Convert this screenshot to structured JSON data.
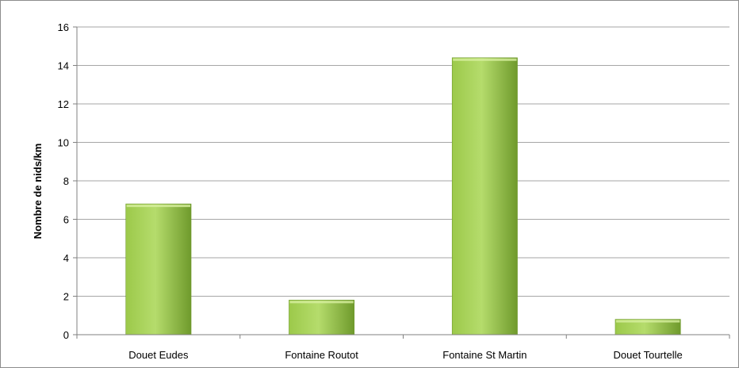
{
  "chart_data": {
    "type": "bar",
    "title": "",
    "xlabel": "",
    "ylabel": "Nombre de nids/km",
    "categories": [
      "Douet Eudes",
      "Fontaine Routot",
      "Fontaine St Martin",
      "Douet Tourtelle"
    ],
    "values": [
      6.8,
      1.8,
      14.4,
      0.8
    ],
    "ylim": [
      0,
      16
    ],
    "yticks": [
      0,
      2,
      4,
      6,
      8,
      10,
      12,
      14,
      16
    ],
    "grid": true,
    "legend": "none",
    "colors": {
      "bar_light": "#b5dc6c",
      "bar_mid": "#9cc94a",
      "bar_dark": "#6f9a2c",
      "grid": "#a6a6a6",
      "axis": "#808080"
    }
  }
}
